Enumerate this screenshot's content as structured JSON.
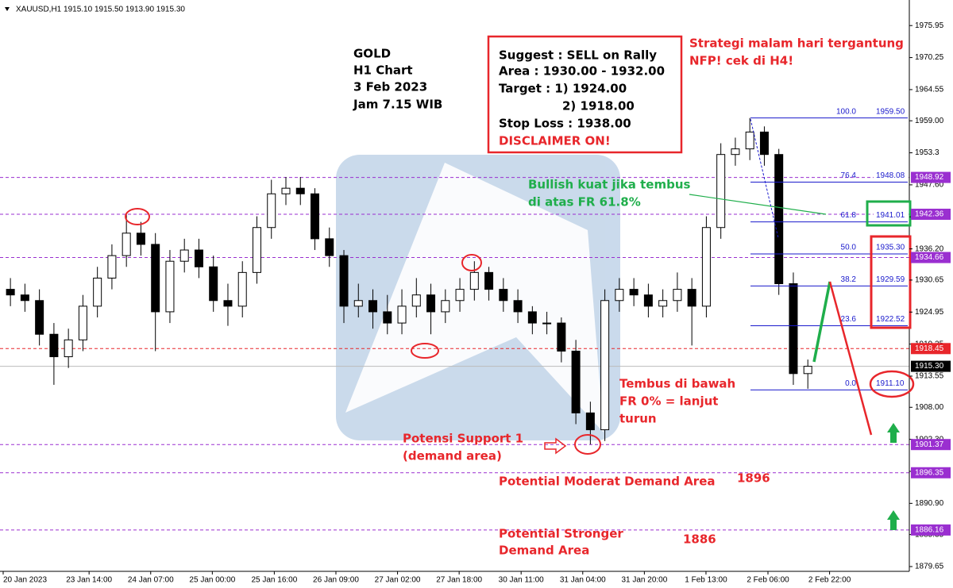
{
  "chart_data": {
    "type": "candlestick",
    "title": "XAUUSD,H1 1915.10 1915.50 1913.90 1915.30",
    "x": [
      2,
      6,
      10,
      14,
      18,
      22,
      26,
      30,
      34,
      38,
      42,
      46,
      50,
      54,
      58,
      62,
      66,
      70,
      74,
      78,
      82,
      86,
      90,
      94,
      98,
      102,
      106,
      110,
      114,
      118,
      122,
      126,
      130,
      134,
      138,
      142,
      146,
      150,
      154,
      158,
      162,
      166,
      170,
      174,
      178,
      182,
      186,
      190,
      194,
      198,
      202,
      206,
      210,
      214,
      218,
      222
    ],
    "open": [
      1929,
      1928,
      1927,
      1921,
      1917,
      1920,
      1926,
      1931,
      1935,
      1939,
      1937,
      1925,
      1934,
      1936,
      1933,
      1927,
      1926,
      1932,
      1940,
      1946,
      1947,
      1946,
      1938,
      1935,
      1926,
      1927,
      1925,
      1923,
      1926,
      1928,
      1925,
      1927,
      1929,
      1932,
      1929,
      1927,
      1925,
      1923,
      1923,
      1918,
      1907,
      1904,
      1927,
      1929,
      1928,
      1926,
      1927,
      1929,
      1926,
      1940,
      1953,
      1954,
      1957,
      1953,
      1930,
      1914
    ],
    "high": [
      1931,
      1930,
      1929,
      1923,
      1922,
      1928,
      1933,
      1937,
      1942.5,
      1941,
      1939,
      1936,
      1938,
      1938,
      1935,
      1930,
      1934,
      1942,
      1948.5,
      1949,
      1949,
      1947,
      1940,
      1936,
      1930,
      1929,
      1928,
      1929,
      1931,
      1930,
      1929,
      1931,
      1934,
      1933,
      1931,
      1929,
      1926,
      1925,
      1924,
      1920,
      1909,
      1929,
      1931,
      1931,
      1930,
      1929,
      1932,
      1931,
      1942,
      1955,
      1956,
      1959.5,
      1958,
      1954,
      1932,
      1916.5
    ],
    "low": [
      1926,
      1925,
      1919,
      1912,
      1915,
      1918,
      1924,
      1929,
      1933,
      1935,
      1918,
      1923,
      1932,
      1931,
      1925,
      1922.5,
      1924,
      1930,
      1938,
      1944,
      1944,
      1936,
      1933,
      1923,
      1924,
      1922,
      1921,
      1921,
      1924,
      1921,
      1923,
      1925,
      1927,
      1927,
      1925,
      1923,
      1921,
      1921,
      1916,
      1905,
      1901.4,
      1902,
      1925,
      1926,
      1924,
      1924,
      1925,
      1919,
      1924,
      1938,
      1951,
      1952,
      1951,
      1928,
      1912,
      1911.3
    ],
    "close": [
      1928,
      1927,
      1921,
      1917,
      1920,
      1926,
      1931,
      1935,
      1939,
      1937,
      1925,
      1934,
      1936,
      1933,
      1927,
      1926,
      1932,
      1940,
      1946,
      1947,
      1946,
      1938,
      1935,
      1926,
      1927,
      1925,
      1923,
      1926,
      1928,
      1925,
      1927,
      1929,
      1932,
      1929,
      1927,
      1925,
      1923,
      1923,
      1918,
      1907,
      1904,
      1927,
      1929,
      1928,
      1926,
      1927,
      1929,
      1926,
      1940,
      1953,
      1954,
      1957,
      1953,
      1930,
      1914,
      1915.3
    ],
    "up_color": "#ffffff",
    "down_color": "#000000",
    "xlim": [
      0,
      250
    ],
    "xticks": [
      {
        "value": 0,
        "label": "20 Jan 2023"
      },
      {
        "value": 23.7,
        "label": "23 Jan 14:00"
      },
      {
        "value": 40.7,
        "label": "24 Jan 07:00"
      },
      {
        "value": 57.7,
        "label": "25 Jan 00:00"
      },
      {
        "value": 74.8,
        "label": "25 Jan 16:00"
      },
      {
        "value": 91.8,
        "label": "26 Jan 09:00"
      },
      {
        "value": 108.8,
        "label": "27 Jan 02:00"
      },
      {
        "value": 125.8,
        "label": "27 Jan 18:00"
      },
      {
        "value": 142.9,
        "label": "30 Jan 11:00"
      },
      {
        "value": 159.9,
        "label": "31 Jan 04:00"
      },
      {
        "value": 176.9,
        "label": "31 Jan 20:00"
      },
      {
        "value": 193.9,
        "label": "1 Feb 13:00"
      },
      {
        "value": 211.0,
        "label": "2 Feb 06:00"
      },
      {
        "value": 228.0,
        "label": "2 Feb 22:00"
      }
    ],
    "ylim": [
      1878.8,
      1980.5
    ],
    "yticks": [
      1975.95,
      1970.25,
      1964.55,
      {
        "value": 1959,
        "label": "1959.00"
      },
      1953.3,
      {
        "value": 1947.6,
        "label": "1947.60"
      },
      {
        "value": 1941.9,
        "label": "1941.90"
      },
      {
        "value": 1936.2,
        "label": "1936.20"
      },
      1930.65,
      1924.95,
      1919.25,
      1913.55,
      {
        "value": 1908,
        "label": "1908.00"
      },
      {
        "value": 1902.3,
        "label": "1902.30"
      },
      {
        "value": 1896.6,
        "label": "1896.60"
      },
      {
        "value": 1890.9,
        "label": "1890.90"
      },
      1885.35,
      1879.65
    ],
    "levels": [
      {
        "price": 1948.92,
        "color": "#9a2fd0"
      },
      {
        "price": 1942.36,
        "color": "#9a2fd0"
      },
      {
        "price": 1934.66,
        "color": "#9a2fd0"
      },
      {
        "price": 1918.45,
        "color": "#e8262b"
      },
      {
        "price": {
          "value": 1915.3,
          "label": "1915.30"
        },
        "color": "#000000"
      },
      {
        "price": 1901.37,
        "color": "#9a2fd0"
      },
      {
        "price": 1896.35,
        "color": "#9a2fd0"
      },
      {
        "price": 1886.16,
        "color": "#9a2fd0"
      }
    ],
    "fibonacci": [
      {
        "ratio": {
          "value": 100,
          "label": "100.0"
        },
        "price": {
          "value": 1959.5,
          "label": "1959.50"
        }
      },
      {
        "ratio": 76.4,
        "price": 1948.08
      },
      {
        "ratio": 61.8,
        "price": 1941.01
      },
      {
        "ratio": {
          "value": 50,
          "label": "50.0"
        },
        "price": {
          "value": 1935.3,
          "label": "1935.30"
        }
      },
      {
        "ratio": 38.2,
        "price": 1929.59
      },
      {
        "ratio": 23.6,
        "price": 1922.52
      },
      {
        "ratio": {
          "value": 0,
          "label": "0.0"
        },
        "price": {
          "value": 1911.1,
          "label": "1911.10"
        }
      }
    ],
    "fib_color": "#1a1acc",
    "annotations": {
      "gold": [
        "GOLD",
        "H1 Chart",
        "3 Feb 2023",
        "Jam 7.15 WIB"
      ],
      "suggest": [
        "Suggest : SELL on Rally",
        "Area : 1930.00 - 1932.00",
        "Target : 1) 1924.00",
        "2) 1918.00",
        "Stop Loss : 1938.00",
        "DISCLAIMER ON!"
      ],
      "strategy": [
        "Strategi malam hari tergantung",
        "NFP! cek di H4!"
      ],
      "bullish": [
        "Bullish kuat jika tembus",
        "di atas FR 61.8%"
      ],
      "tembus": [
        "Tembus di bawah",
        "FR 0% = lanjut",
        "turun"
      ],
      "support": [
        "Potensi Support 1",
        "(demand area)"
      ],
      "moderate": "Potential Moderat Demand Area",
      "moderate_level": "1896",
      "stronger": [
        "Potential Stronger",
        "Demand Area"
      ],
      "stronger_level": "1886"
    }
  }
}
